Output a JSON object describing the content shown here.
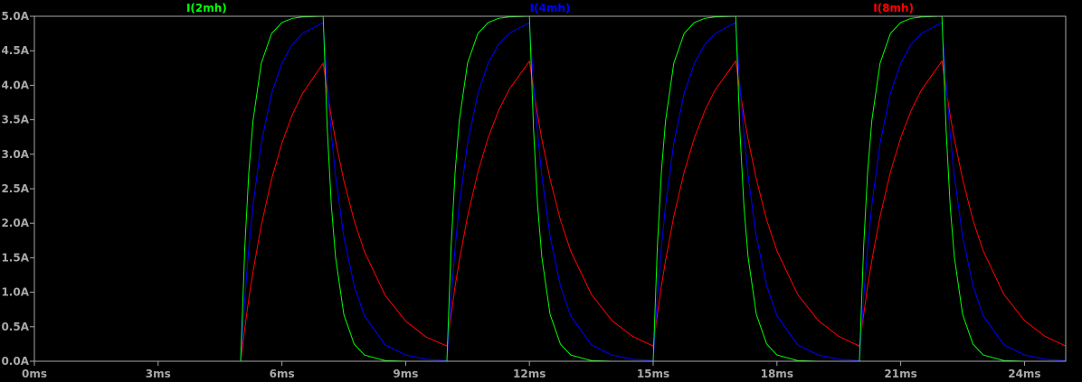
{
  "chart_data": {
    "type": "line",
    "title": "",
    "xlabel": "",
    "ylabel": "",
    "xlim": [
      0,
      25
    ],
    "ylim": [
      0,
      5
    ],
    "x_unit": "ms",
    "y_unit": "A",
    "grid": false,
    "background": "#000000",
    "axis_color": "#a8a8a8",
    "x_ticks": [
      "0ms",
      "3ms",
      "6ms",
      "9ms",
      "12ms",
      "15ms",
      "18ms",
      "21ms",
      "24ms"
    ],
    "x_tick_values": [
      0,
      3,
      6,
      9,
      12,
      15,
      18,
      21,
      24
    ],
    "y_ticks": [
      "0.0A",
      "0.5A",
      "1.0A",
      "1.5A",
      "2.0A",
      "2.5A",
      "3.0A",
      "3.5A",
      "4.0A",
      "4.5A",
      "5.0A"
    ],
    "y_tick_values": [
      0,
      0.5,
      1,
      1.5,
      2,
      2.5,
      3,
      3.5,
      4,
      4.5,
      5
    ],
    "legend_placement": "top",
    "x": [
      0,
      5,
      5.1,
      5.2,
      5.3,
      5.5,
      5.75,
      6,
      6.25,
      6.5,
      7,
      7.1,
      7.2,
      7.3,
      7.5,
      7.75,
      8,
      8.5,
      9,
      9.5,
      10,
      10.1,
      10.2,
      10.3,
      10.5,
      10.75,
      11,
      11.25,
      11.5,
      12,
      12.1,
      12.2,
      12.3,
      12.5,
      12.75,
      13,
      13.5,
      14,
      14.5,
      15,
      15.1,
      15.2,
      15.3,
      15.5,
      15.75,
      16,
      16.25,
      16.5,
      17,
      17.1,
      17.2,
      17.3,
      17.5,
      17.75,
      18,
      18.5,
      19,
      19.5,
      20,
      20.1,
      20.2,
      20.3,
      20.5,
      20.75,
      21,
      21.25,
      21.5,
      22,
      22.1,
      22.2,
      22.3,
      22.5,
      22.75,
      23,
      23.5,
      24,
      24.5,
      25
    ],
    "series": [
      {
        "name": "I(2mh)",
        "color": "#00ff00",
        "values": [
          0,
          0,
          1.65,
          2.75,
          3.49,
          4.32,
          4.75,
          4.91,
          4.97,
          4.99,
          5.0,
          3.35,
          2.25,
          1.51,
          0.68,
          0.25,
          0.09,
          0.01,
          0,
          0,
          0,
          1.65,
          2.75,
          3.49,
          4.32,
          4.75,
          4.91,
          4.97,
          4.99,
          5.0,
          3.35,
          2.25,
          1.51,
          0.68,
          0.25,
          0.09,
          0.01,
          0,
          0,
          0,
          1.65,
          2.75,
          3.49,
          4.32,
          4.75,
          4.91,
          4.97,
          4.99,
          5.0,
          3.35,
          2.25,
          1.51,
          0.68,
          0.25,
          0.09,
          0.01,
          0,
          0,
          0,
          1.65,
          2.75,
          3.49,
          4.32,
          4.75,
          4.91,
          4.97,
          4.99,
          5.0,
          3.35,
          2.25,
          1.51,
          0.68,
          0.25,
          0.09,
          0.01,
          0,
          0,
          0
        ]
      },
      {
        "name": "I(4mh)",
        "color": "#0000ff",
        "values": [
          0,
          0,
          0.91,
          1.65,
          2.26,
          3.16,
          3.88,
          4.32,
          4.59,
          4.75,
          4.91,
          4.02,
          3.29,
          2.69,
          1.81,
          1.1,
          0.66,
          0.24,
          0.09,
          0.03,
          0.01,
          0.91,
          1.65,
          2.26,
          3.16,
          3.88,
          4.32,
          4.59,
          4.75,
          4.91,
          4.02,
          3.29,
          2.69,
          1.81,
          1.1,
          0.66,
          0.24,
          0.09,
          0.03,
          0.01,
          0.91,
          1.65,
          2.26,
          3.16,
          3.88,
          4.32,
          4.59,
          4.75,
          4.91,
          4.02,
          3.29,
          2.69,
          1.81,
          1.1,
          0.66,
          0.24,
          0.09,
          0.03,
          0.01,
          0.91,
          1.65,
          2.26,
          3.16,
          3.88,
          4.32,
          4.59,
          4.75,
          4.91,
          4.02,
          3.29,
          2.69,
          1.81,
          1.1,
          0.66,
          0.24,
          0.09,
          0.03,
          0.01
        ]
      },
      {
        "name": "I(8mh)",
        "color": "#ff0000",
        "values": [
          0,
          0,
          0.48,
          0.91,
          1.3,
          1.97,
          2.64,
          3.16,
          3.57,
          3.88,
          4.32,
          3.91,
          3.54,
          3.2,
          2.62,
          2.04,
          1.59,
          0.96,
          0.58,
          0.35,
          0.22,
          0.67,
          1.09,
          1.46,
          2.1,
          2.74,
          3.24,
          3.63,
          3.93,
          4.35,
          3.94,
          3.56,
          3.22,
          2.64,
          2.05,
          1.6,
          0.97,
          0.59,
          0.36,
          0.22,
          0.67,
          1.09,
          1.46,
          2.1,
          2.74,
          3.24,
          3.63,
          3.93,
          4.35,
          3.94,
          3.56,
          3.22,
          2.64,
          2.05,
          1.6,
          0.97,
          0.59,
          0.36,
          0.22,
          0.67,
          1.09,
          1.46,
          2.1,
          2.74,
          3.24,
          3.63,
          3.93,
          4.35,
          3.94,
          3.56,
          3.22,
          2.64,
          2.05,
          1.6,
          0.97,
          0.59,
          0.36,
          0.22
        ]
      }
    ]
  }
}
